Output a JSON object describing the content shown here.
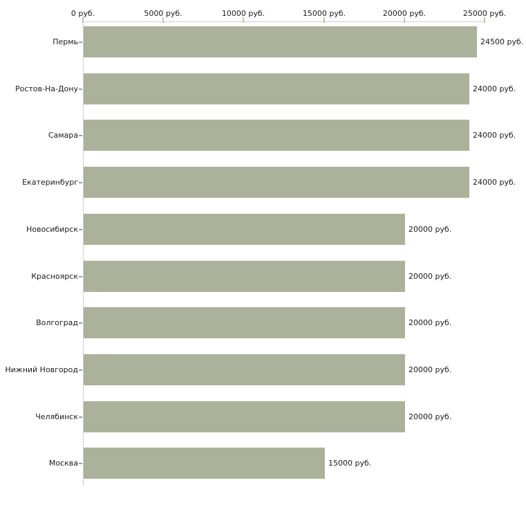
{
  "chart_data": {
    "type": "bar",
    "orientation": "horizontal",
    "title": "",
    "xlabel": "",
    "ylabel": "",
    "categories": [
      "Пермь",
      "Ростов-На-Дону",
      "Самара",
      "Екатеринбург",
      "Новосибирск",
      "Красноярск",
      "Волгоград",
      "Нижний Новгород",
      "Челябинск",
      "Москва"
    ],
    "values": [
      24500,
      24000,
      24000,
      24000,
      20000,
      20000,
      20000,
      20000,
      20000,
      15000
    ],
    "value_labels": [
      "24500 руб.",
      "24000 руб.",
      "24000 руб.",
      "24000 руб.",
      "20000 руб.",
      "20000 руб.",
      "20000 руб.",
      "20000 руб.",
      "20000 руб.",
      "15000 руб."
    ],
    "x_ticks": [
      0,
      5000,
      10000,
      15000,
      20000,
      25000
    ],
    "x_tick_labels": [
      "0 руб.",
      "5000 руб.",
      "10000 руб.",
      "15000 руб.",
      "20000 руб.",
      "25000 руб."
    ],
    "xlim": [
      0,
      25000
    ],
    "axis_position": "top",
    "grid": false,
    "legend": false,
    "colors": {
      "bar": "#acb299",
      "axis_line": "#cfcfcf",
      "x_tick": "#c8c5a2",
      "category_tick": "#9c9c94",
      "text": "#1a1a1a",
      "background": "#ffffff"
    }
  }
}
